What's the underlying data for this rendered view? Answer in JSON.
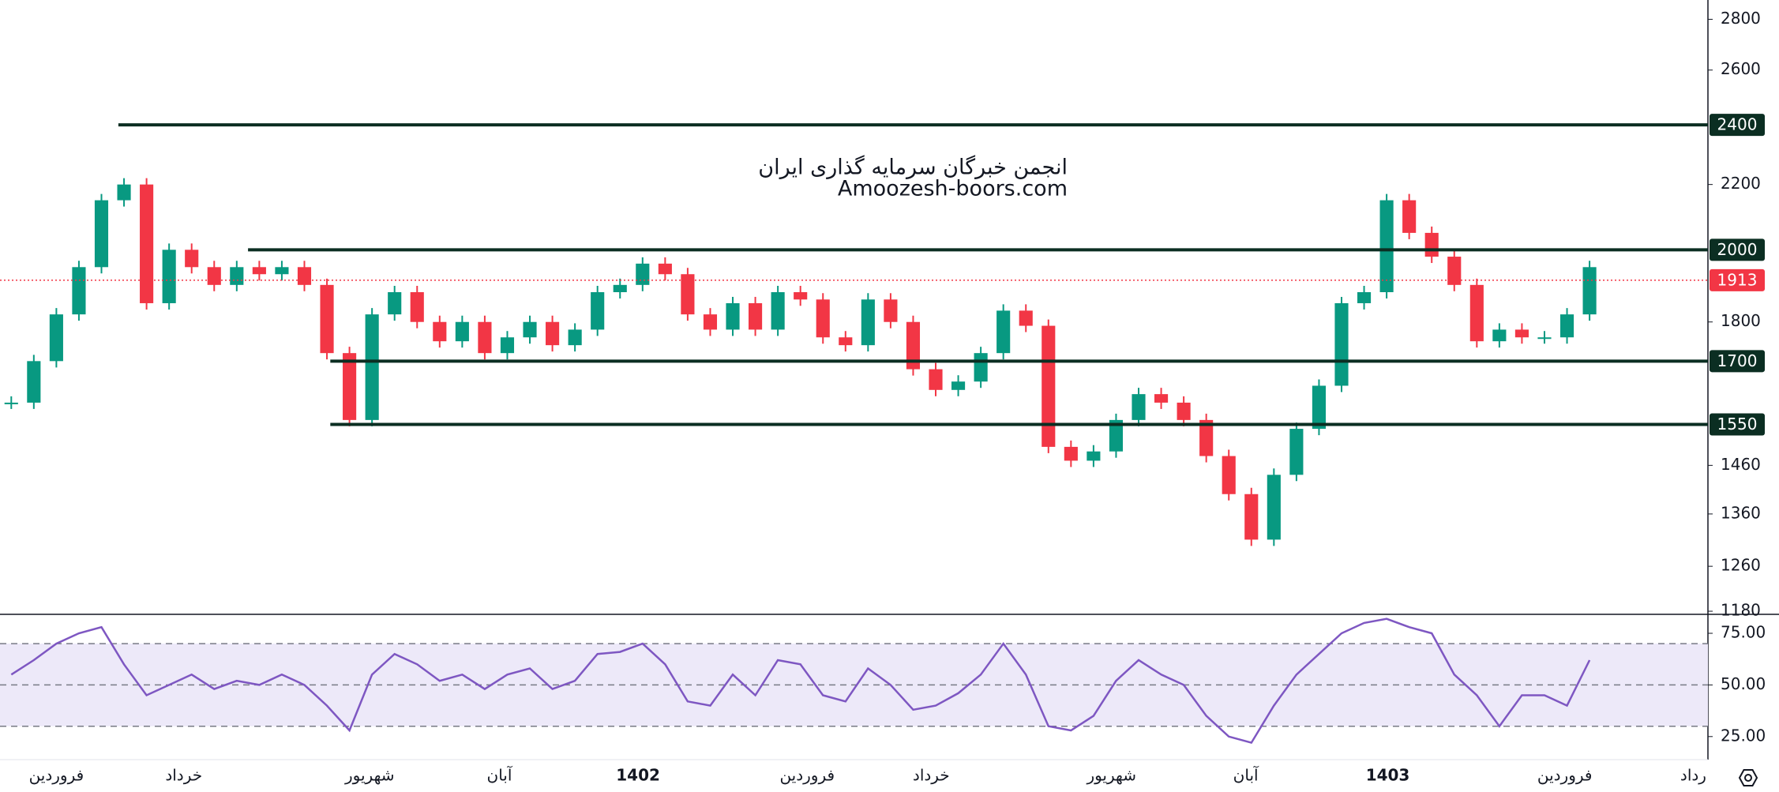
{
  "chart_data": [
    {
      "type": "candlestick",
      "annotations": [
        "انجمن خبرگان سرمایه گذاری ایران",
        "Amoozesh-boors.com"
      ],
      "x": [
        0,
        1,
        2,
        3,
        4,
        5,
        6,
        7,
        8,
        9,
        10,
        11,
        12,
        13,
        14,
        15,
        16,
        17,
        18,
        19,
        20,
        21,
        22,
        23,
        24,
        25,
        26,
        27,
        28,
        29,
        30,
        31,
        32,
        33,
        34,
        35,
        36,
        37,
        38,
        39,
        40,
        41,
        42,
        43,
        44,
        45,
        46,
        47,
        48,
        49,
        50,
        51,
        52,
        53,
        54,
        55,
        56,
        57,
        58,
        59,
        60,
        61,
        62,
        63,
        64,
        65,
        66,
        67,
        68,
        69,
        70
      ],
      "values": [
        1600,
        1700,
        1820,
        1950,
        2150,
        2200,
        1850,
        2000,
        1950,
        1900,
        1950,
        1930,
        1950,
        1900,
        1720,
        1560,
        1820,
        1880,
        1800,
        1750,
        1800,
        1720,
        1760,
        1800,
        1740,
        1780,
        1880,
        1900,
        1960,
        1930,
        1820,
        1780,
        1850,
        1780,
        1880,
        1860,
        1760,
        1740,
        1860,
        1800,
        1680,
        1630,
        1650,
        1720,
        1830,
        1790,
        1500,
        1470,
        1490,
        1560,
        1620,
        1600,
        1560,
        1480,
        1400,
        1310,
        1440,
        1540,
        1640,
        1850,
        1880,
        2150,
        2050,
        1980,
        1900,
        1750,
        1780,
        1760,
        1760,
        1820,
        1950
      ],
      "up_color": "#089981",
      "down_color": "#f23645",
      "log_scale": true,
      "xlim": [
        -0.5,
        75.25
      ],
      "ylim": [
        1176,
        2880
      ],
      "yticks": [
        1180,
        1260,
        1360,
        1460,
        1800,
        2200,
        2600,
        2800
      ],
      "levels": [
        {
          "value": 2400,
          "from": 4.75
        },
        {
          "value": 2000,
          "from": 10.5
        },
        {
          "value": 1700,
          "from": 14.15
        },
        {
          "value": 1550,
          "from": 14.15
        }
      ],
      "level_color": "#0b2e22",
      "last_price": 1913,
      "last_price_color": "#f23645"
    },
    {
      "type": "line",
      "x": [
        0,
        1,
        2,
        3,
        4,
        5,
        6,
        7,
        8,
        9,
        10,
        11,
        12,
        13,
        14,
        15,
        16,
        17,
        18,
        19,
        20,
        21,
        22,
        23,
        24,
        25,
        26,
        27,
        28,
        29,
        30,
        31,
        32,
        33,
        34,
        35,
        36,
        37,
        38,
        39,
        40,
        41,
        42,
        43,
        44,
        45,
        46,
        47,
        48,
        49,
        50,
        51,
        52,
        53,
        54,
        55,
        56,
        57,
        58,
        59,
        60,
        61,
        62,
        63,
        64,
        65,
        66,
        67,
        68,
        69,
        70
      ],
      "values": [
        55,
        62,
        70,
        75,
        78,
        60,
        45,
        50,
        55,
        48,
        52,
        50,
        55,
        50,
        40,
        28,
        55,
        65,
        60,
        52,
        55,
        48,
        55,
        58,
        48,
        52,
        65,
        66,
        70,
        60,
        42,
        40,
        55,
        45,
        62,
        60,
        45,
        42,
        58,
        50,
        38,
        40,
        46,
        55,
        70,
        55,
        30,
        28,
        35,
        52,
        62,
        55,
        50,
        35,
        25,
        22,
        40,
        55,
        65,
        75,
        80,
        82,
        78,
        75,
        55,
        45,
        30,
        45,
        45,
        40,
        62
      ],
      "color": "#7e57c2",
      "xlim": [
        -0.5,
        75.25
      ],
      "ylim": [
        14.6,
        83.8
      ],
      "yticks": [
        {
          "value": 25,
          "label": "25.00"
        },
        {
          "value": 50,
          "label": "50.00"
        },
        {
          "value": 75,
          "label": "75.00"
        }
      ],
      "band": [
        30,
        70
      ],
      "midline": 50,
      "xticks": [
        {
          "value": 2,
          "label": "فروردین"
        },
        {
          "value": 7.65,
          "label": "خرداد"
        },
        {
          "value": 15.9,
          "label": "شهریور"
        },
        {
          "value": 21.65,
          "label": "آبان"
        },
        {
          "value": 27.8,
          "label": "1402",
          "bold": true
        },
        {
          "value": 35.3,
          "label": "فروردین"
        },
        {
          "value": 40.8,
          "label": "خرداد"
        },
        {
          "value": 48.8,
          "label": "شهریور"
        },
        {
          "value": 54.75,
          "label": "آبان"
        },
        {
          "value": 61.05,
          "label": "1403",
          "bold": true
        },
        {
          "value": 68.9,
          "label": "فروردین"
        },
        {
          "value": 74.6,
          "label": "رداد"
        }
      ]
    }
  ]
}
